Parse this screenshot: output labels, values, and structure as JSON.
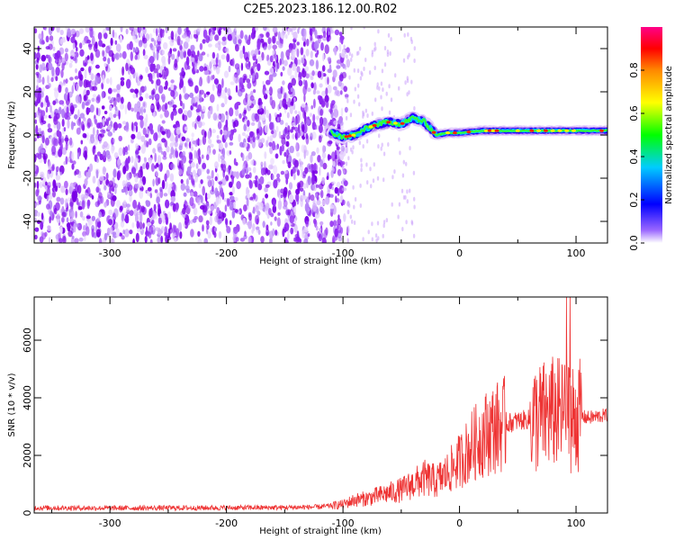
{
  "chart_data": [
    {
      "type": "heatmap",
      "title": "C2E5.2023.186.12.00.R02",
      "xlabel": "Height of straight line (km)",
      "ylabel": "Frequency (Hz)",
      "xlim": [
        -365,
        127
      ],
      "ylim": [
        -50,
        50
      ],
      "xticks": [
        -300,
        -200,
        -100,
        0,
        100
      ],
      "yticks": [
        -40,
        -20,
        0,
        20,
        40
      ],
      "colorbar": {
        "label": "Normalized spectral amplitude",
        "range": [
          0.0,
          1.0
        ],
        "ticks": [
          "0.0",
          "0.2",
          "0.4",
          "0.6",
          "0.8"
        ],
        "colormap": "hsv-like: white to purple, blue, cyan, green, yellow, red, magenta"
      },
      "signal_trace": {
        "x": [
          -110,
          -100,
          -90,
          -80,
          -70,
          -60,
          -50,
          -40,
          -30,
          -20,
          -10,
          0,
          20,
          40,
          60,
          80,
          100,
          127
        ],
        "frequency": [
          1,
          -1,
          0,
          3,
          5,
          6,
          5,
          8,
          6,
          0,
          1,
          1,
          2,
          2,
          2,
          2,
          2,
          2
        ]
      },
      "noise_region_x": [
        -365,
        -100
      ]
    },
    {
      "type": "line",
      "title": "",
      "xlabel": "Height of straight line (km)",
      "ylabel": "SNR (10 * v/v)",
      "xlim": [
        -365,
        127
      ],
      "ylim": [
        0,
        7500
      ],
      "xticks": [
        -300,
        -200,
        -100,
        0,
        100
      ],
      "yticks": [
        0,
        2000,
        4000,
        6000
      ],
      "series": [
        {
          "color": "#ee3333",
          "x": [
            -365,
            -300,
            -200,
            -150,
            -120,
            -100,
            -90,
            -80,
            -70,
            -60,
            -50,
            -40,
            -30,
            -20,
            -10,
            0,
            10,
            20,
            30,
            40,
            50,
            60,
            70,
            80,
            90,
            95,
            100,
            110,
            127
          ],
          "values": [
            180,
            170,
            180,
            190,
            210,
            300,
            450,
            500,
            600,
            700,
            800,
            1000,
            1200,
            1100,
            1400,
            1800,
            2300,
            2700,
            2950,
            3100,
            3200,
            3250,
            3300,
            3500,
            3400,
            3300,
            3400,
            3300,
            3400
          ]
        }
      ]
    }
  ]
}
